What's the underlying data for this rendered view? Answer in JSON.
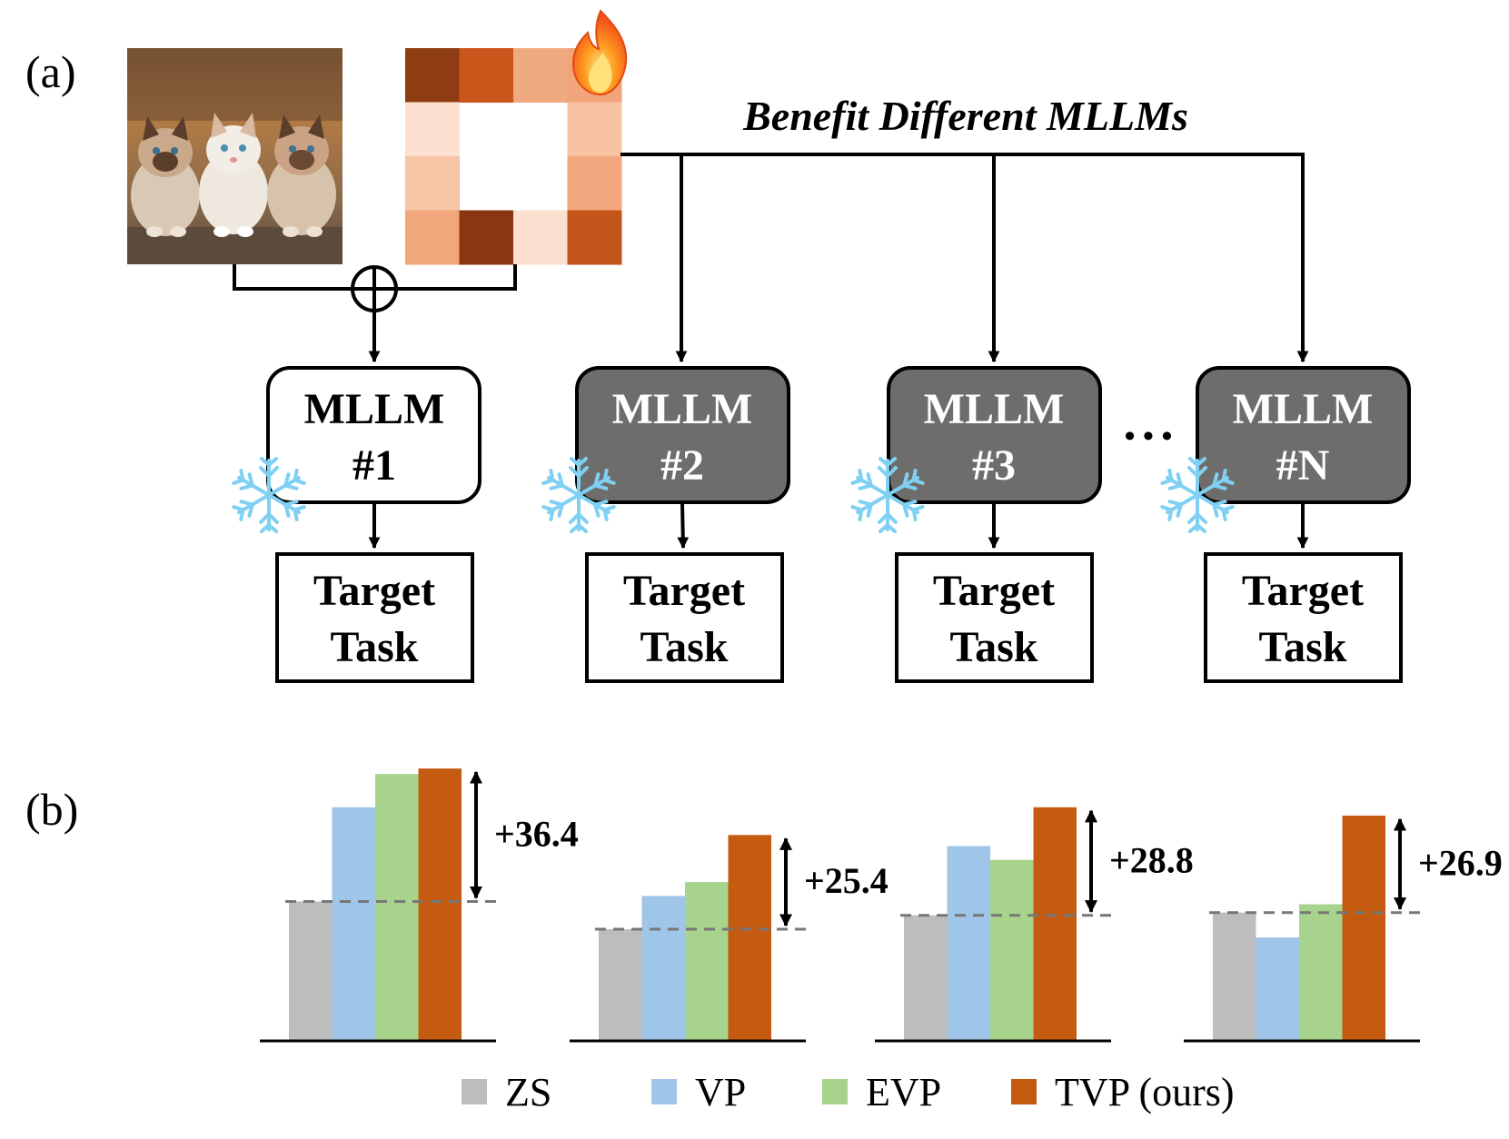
{
  "panel_a": {
    "label": "(a)",
    "headline": "Benefit Different MLLMs",
    "models": [
      {
        "line1": "MLLM",
        "line2": "#1",
        "style": "light"
      },
      {
        "line1": "MLLM",
        "line2": "#2",
        "style": "dark"
      },
      {
        "line1": "MLLM",
        "line2": "#3",
        "style": "dark"
      },
      {
        "line1": "MLLM",
        "line2": "#N",
        "style": "dark"
      }
    ],
    "ellipsis": "• • •",
    "target": {
      "line1": "Target",
      "line2": "Task"
    },
    "icons": {
      "prompt": "fire-icon",
      "frozen": "snowflake-icon",
      "combine": "circled-plus-icon",
      "input": "kittens-photo"
    },
    "prompt_pattern_colors": [
      [
        "#8e3c12",
        "#c9571b",
        "#f0aa82",
        "#f2a47a"
      ],
      [
        "#fde0cf",
        null,
        null,
        "#f7c3a3"
      ],
      [
        "#f7c4a6",
        null,
        null,
        "#f2a77e"
      ],
      [
        "#f0a77c",
        "#8a3711",
        "#fbdfcf",
        "#c5561b"
      ]
    ]
  },
  "panel_b": {
    "label": "(b)",
    "series_colors": {
      "ZS": "#bdbdbd",
      "VP": "#9fc5e8",
      "EVP": "#a8d38d",
      "TVP (ours)": "#c55a11"
    }
  },
  "chart_data": {
    "type": "bar",
    "title": "",
    "xlabel": "",
    "ylabel": "",
    "legend": {
      "position": "bottom",
      "entries": [
        "ZS",
        "VP",
        "EVP",
        "TVP (ours)"
      ]
    },
    "groups": [
      {
        "values": {
          "ZS": 50,
          "VP": 84,
          "EVP": 96,
          "TVP (ours)": 98
        },
        "gain_label": "+36.4"
      },
      {
        "values": {
          "ZS": 40,
          "VP": 52,
          "EVP": 57,
          "TVP (ours)": 74
        },
        "gain_label": "+25.4"
      },
      {
        "values": {
          "ZS": 45,
          "VP": 70,
          "EVP": 65,
          "TVP (ours)": 84
        },
        "gain_label": "+28.8"
      },
      {
        "values": {
          "ZS": 46,
          "VP": 37,
          "EVP": 49,
          "TVP (ours)": 81
        },
        "gain_label": "+26.9"
      }
    ]
  }
}
